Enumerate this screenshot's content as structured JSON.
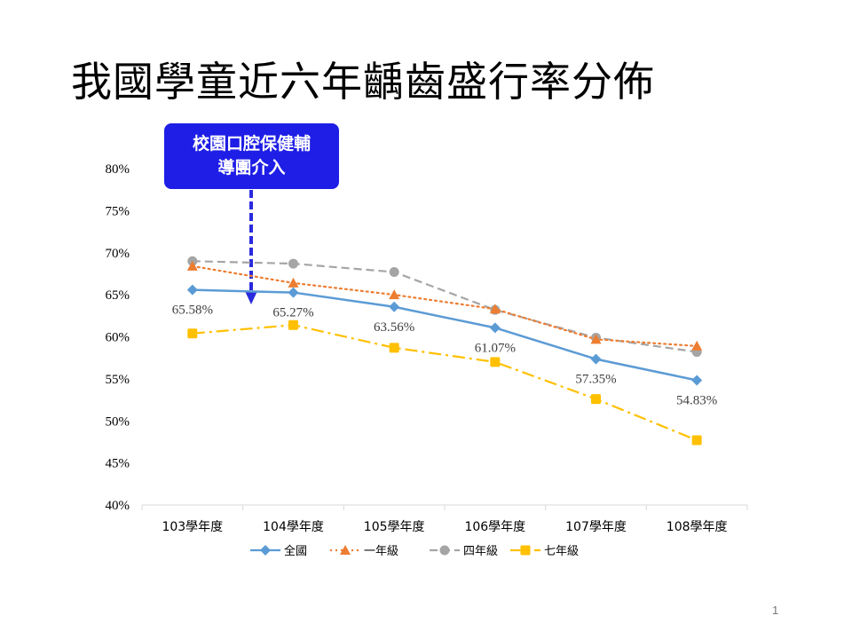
{
  "slide": {
    "title": "我國學童近六年齲齒盛行率分佈",
    "callout_line1": "校園口腔保健輔",
    "callout_line2": "導團介入",
    "page_number": "1"
  },
  "chart_data": {
    "type": "line",
    "categories": [
      "103學年度",
      "104學年度",
      "105學年度",
      "106學年度",
      "107學年度",
      "108學年度"
    ],
    "ylim": [
      40,
      80
    ],
    "yticks": [
      40,
      45,
      50,
      55,
      60,
      65,
      70,
      75,
      80
    ],
    "ytick_labels": [
      "40%",
      "45%",
      "50%",
      "55%",
      "60%",
      "65%",
      "70%",
      "75%",
      "80%"
    ],
    "legend_position": "bottom",
    "series": [
      {
        "name": "全國",
        "values": [
          65.58,
          65.27,
          63.56,
          61.07,
          57.35,
          54.83
        ],
        "data_labels": [
          "65.58%",
          "65.27%",
          "63.56%",
          "61.07%",
          "57.35%",
          "54.83%"
        ],
        "color": "#5b9bd5",
        "marker": "diamond",
        "dash": ""
      },
      {
        "name": "一年級",
        "values": [
          68.4,
          66.4,
          65.0,
          63.3,
          59.7,
          58.9
        ],
        "color": "#ed7d31",
        "marker": "triangle",
        "dash": "2,4"
      },
      {
        "name": "四年級",
        "values": [
          69.0,
          68.7,
          67.7,
          63.2,
          59.9,
          58.2
        ],
        "color": "#a5a5a5",
        "marker": "circle",
        "dash": "9,5"
      },
      {
        "name": "七年級",
        "values": [
          60.4,
          61.4,
          58.7,
          57.0,
          52.6,
          47.7
        ],
        "color": "#ffc000",
        "marker": "square",
        "dash": "14,5,3,5"
      }
    ]
  }
}
